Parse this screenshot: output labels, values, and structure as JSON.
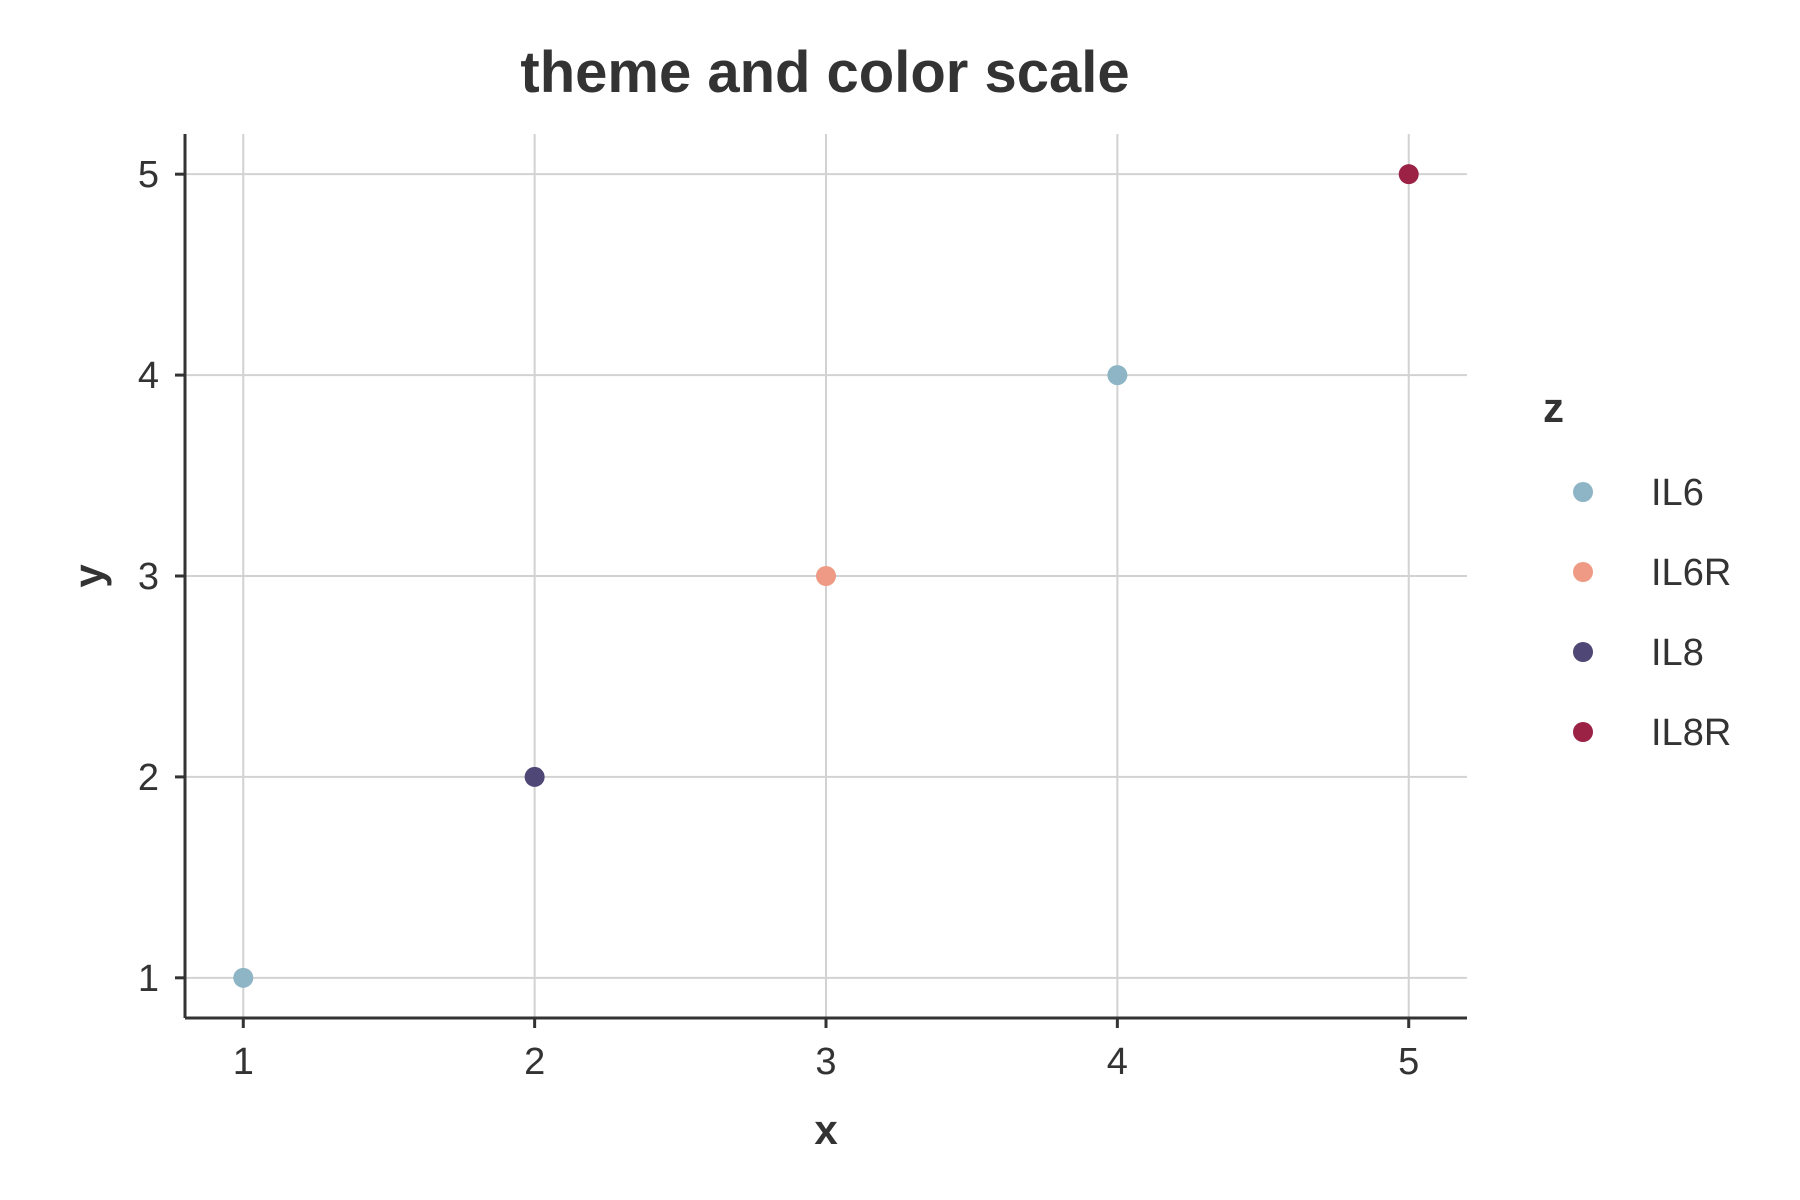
{
  "chart_data": {
    "type": "scatter",
    "title": "theme and color scale",
    "xlabel": "x",
    "ylabel": "y",
    "xlim": [
      0.8,
      5.2
    ],
    "ylim": [
      0.8,
      5.2
    ],
    "xticks": [
      1,
      2,
      3,
      4,
      5
    ],
    "yticks": [
      1,
      2,
      3,
      4,
      5
    ],
    "grid": true,
    "legend": {
      "title": "z",
      "placement": "right",
      "entries": [
        {
          "label": "IL6",
          "color": "#8db5c5"
        },
        {
          "label": "IL6R",
          "color": "#ef9a84"
        },
        {
          "label": "IL8",
          "color": "#4f4775"
        },
        {
          "label": "IL8R",
          "color": "#9b2145"
        }
      ]
    },
    "points": [
      {
        "x": 1,
        "y": 1,
        "z": "IL6"
      },
      {
        "x": 2,
        "y": 2,
        "z": "IL8"
      },
      {
        "x": 3,
        "y": 3,
        "z": "IL6R"
      },
      {
        "x": 4,
        "y": 4,
        "z": "IL6"
      },
      {
        "x": 5,
        "y": 5,
        "z": "IL8R"
      }
    ]
  }
}
